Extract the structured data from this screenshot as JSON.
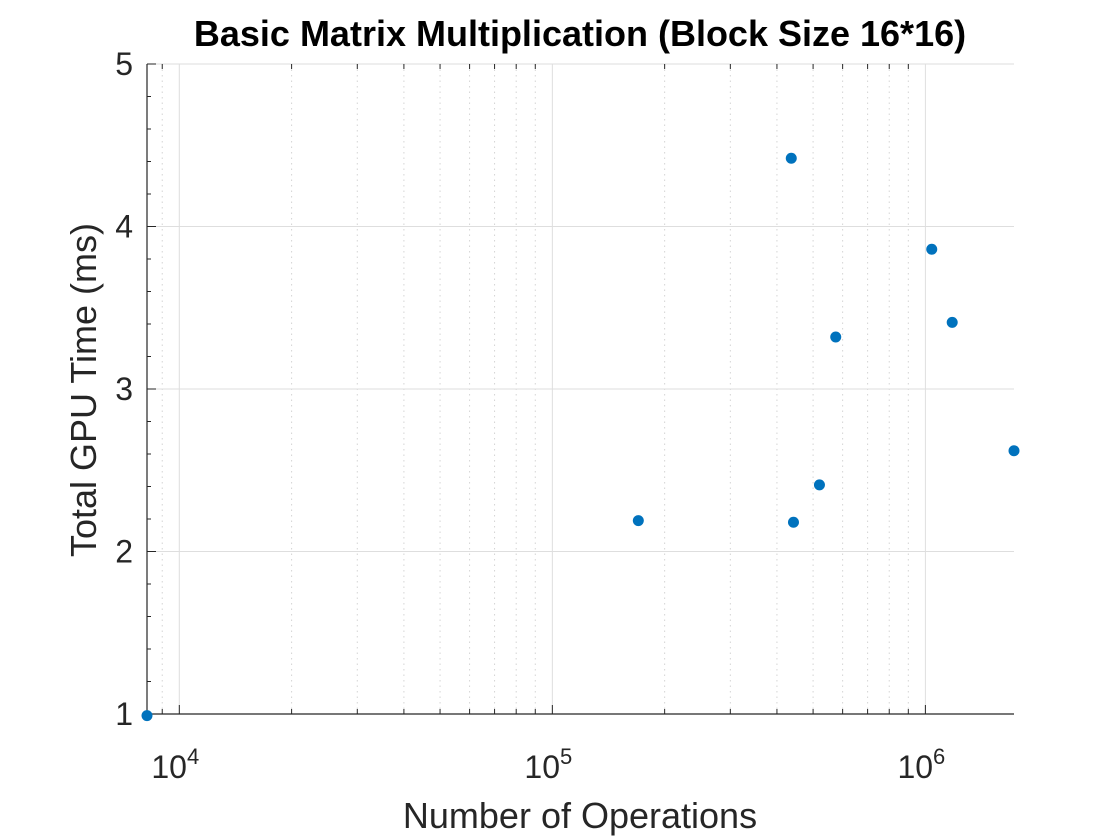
{
  "chart_data": {
    "type": "scatter",
    "title": "Basic Matrix Multiplication (Block Size 16*16)",
    "xlabel": "Number of Operations",
    "ylabel": "Total GPU Time (ms)",
    "x_scale": "log",
    "y_scale": "linear",
    "xlim": [
      8192,
      1728000
    ],
    "ylim": [
      1,
      5
    ],
    "grid": true,
    "minor_grid": true,
    "marker_color": "#0072BD",
    "x_ticks": [
      {
        "value": 10000,
        "base": "10",
        "exp": "4"
      },
      {
        "value": 100000,
        "base": "10",
        "exp": "5"
      },
      {
        "value": 1000000,
        "base": "10",
        "exp": "6"
      }
    ],
    "y_ticks": [
      {
        "value": 1,
        "label": "1"
      },
      {
        "value": 2,
        "label": "2"
      },
      {
        "value": 3,
        "label": "3"
      },
      {
        "value": 4,
        "label": "4"
      },
      {
        "value": 5,
        "label": "5"
      }
    ],
    "points": [
      {
        "x": 8192,
        "y": 0.99
      },
      {
        "x": 170000,
        "y": 2.19
      },
      {
        "x": 437000,
        "y": 4.42
      },
      {
        "x": 443000,
        "y": 2.18
      },
      {
        "x": 520000,
        "y": 2.41
      },
      {
        "x": 575000,
        "y": 3.32
      },
      {
        "x": 1040000,
        "y": 3.86
      },
      {
        "x": 1180000,
        "y": 3.41
      },
      {
        "x": 1728000,
        "y": 2.62
      }
    ]
  }
}
